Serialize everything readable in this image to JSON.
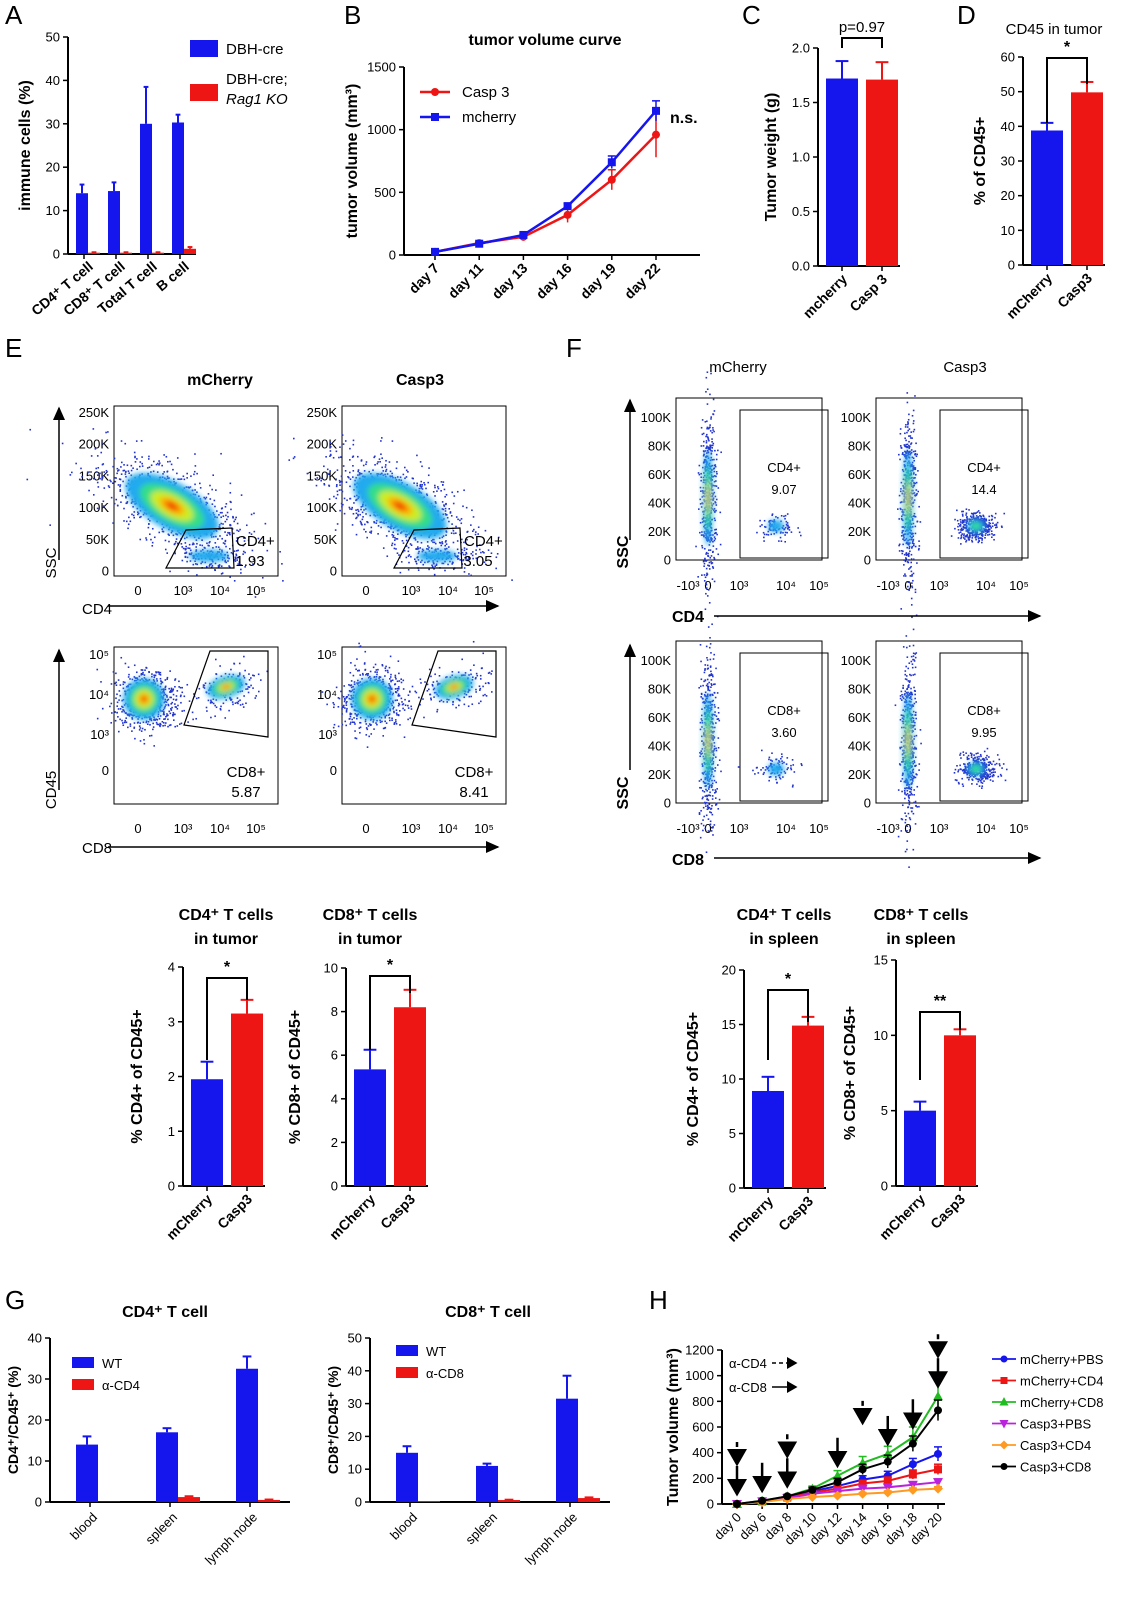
{
  "panel_labels": [
    "A",
    "B",
    "C",
    "D",
    "E",
    "F",
    "G",
    "H"
  ],
  "colors": {
    "blue": "#1515ee",
    "red": "#ee1515",
    "green": "#22bb22",
    "magenta": "#bb22dd",
    "orange": "#ff9922",
    "black": "#000000"
  },
  "chart_data": [
    {
      "id": "A",
      "type": "bar",
      "title": "",
      "ylabel": "immune cells (%)",
      "ylim": [
        0,
        50
      ],
      "yticks": [
        0,
        10,
        20,
        30,
        40,
        50
      ],
      "categories": [
        "CD4⁺ T cell",
        "CD8⁺ T cell",
        "Total T cell",
        "B cell"
      ],
      "series": [
        {
          "name": "DBH-cre",
          "values": [
            14,
            14.5,
            30,
            30.3
          ],
          "errors": [
            2,
            2,
            8.5,
            1.8
          ]
        },
        {
          "name": "DBH-cre; Rag1 KO",
          "values": [
            0.3,
            0.3,
            0.3,
            1.2
          ],
          "errors": [
            0.1,
            0.1,
            0.1,
            0.4
          ]
        }
      ],
      "legend": [
        "DBH-cre",
        "DBH-cre;",
        "Rag1 KO"
      ]
    },
    {
      "id": "B",
      "type": "line",
      "title": "tumor volume curve",
      "ylabel": "tumor volume (mm³)",
      "ylim": [
        0,
        1500
      ],
      "yticks": [
        0,
        500,
        1000,
        1500
      ],
      "x": [
        "day 7",
        "day 11",
        "day 13",
        "day 16",
        "day 19",
        "day 22"
      ],
      "series": [
        {
          "name": "Casp 3",
          "values": [
            25,
            95,
            145,
            320,
            600,
            960
          ],
          "errors": [
            5,
            10,
            15,
            60,
            80,
            180
          ]
        },
        {
          "name": "mcherry",
          "values": [
            25,
            90,
            160,
            390,
            740,
            1150
          ],
          "errors": [
            5,
            10,
            12,
            20,
            50,
            80
          ]
        }
      ],
      "annotation": "n.s."
    },
    {
      "id": "C",
      "type": "bar",
      "title": "",
      "ylabel": "Tumor weight (g)",
      "ylim": [
        0,
        2.0
      ],
      "yticks": [
        "0.0",
        "0.5",
        "1.0",
        "1.5",
        "2.0"
      ],
      "categories": [
        "mcherry",
        "Casp 3"
      ],
      "values": [
        1.72,
        1.71
      ],
      "errors": [
        0.16,
        0.16
      ],
      "annotation": "p=0.97"
    },
    {
      "id": "D",
      "type": "bar",
      "title": "CD45 in tumor",
      "ylabel": "% of CD45+",
      "ylim": [
        0,
        60
      ],
      "yticks": [
        0,
        10,
        20,
        30,
        40,
        50,
        60
      ],
      "categories": [
        "mCherry",
        "Casp3"
      ],
      "values": [
        38.8,
        49.8
      ],
      "errors": [
        2.2,
        3.0
      ],
      "annotation": "*"
    },
    {
      "id": "E1",
      "type": "bar",
      "title": [
        "CD4⁺ T cells",
        "in tumor"
      ],
      "ylabel": "% CD4+ of CD45+",
      "ylim": [
        0,
        4
      ],
      "yticks": [
        0,
        1,
        2,
        3,
        4
      ],
      "categories": [
        "mCherry",
        "Casp3"
      ],
      "values": [
        1.95,
        3.15
      ],
      "errors": [
        0.32,
        0.25
      ],
      "annotation": "*"
    },
    {
      "id": "E2",
      "type": "bar",
      "title": [
        "CD8⁺ T cells",
        "in tumor"
      ],
      "ylabel": "% CD8+ of CD45+",
      "ylim": [
        0,
        10
      ],
      "yticks": [
        0,
        2,
        4,
        6,
        8,
        10
      ],
      "categories": [
        "mCherry",
        "Casp3"
      ],
      "values": [
        5.35,
        8.2
      ],
      "errors": [
        0.9,
        0.8
      ],
      "annotation": "*"
    },
    {
      "id": "F1",
      "type": "bar",
      "title": [
        "CD4⁺ T cells",
        "in spleen"
      ],
      "ylabel": "% CD4+ of CD45+",
      "ylim": [
        0,
        20
      ],
      "yticks": [
        0,
        5,
        10,
        15,
        20
      ],
      "categories": [
        "mCherry",
        "Casp3"
      ],
      "values": [
        8.9,
        14.9
      ],
      "errors": [
        1.3,
        0.8
      ],
      "annotation": "*"
    },
    {
      "id": "F2",
      "type": "bar",
      "title": [
        "CD8⁺ T cells",
        "in spleen"
      ],
      "ylabel": "% CD8+ of CD45+",
      "ylim": [
        0,
        15
      ],
      "yticks": [
        0,
        5,
        10,
        15
      ],
      "categories": [
        "mCherry",
        "Casp3"
      ],
      "values": [
        5.0,
        10.0
      ],
      "errors": [
        0.6,
        0.4
      ],
      "annotation": "**"
    },
    {
      "id": "G1",
      "type": "bar",
      "title": "CD4⁺ T cell",
      "ylabel": "CD4⁺/CD45⁺ (%)",
      "ylim": [
        0,
        40
      ],
      "yticks": [
        0,
        10,
        20,
        30,
        40
      ],
      "categories": [
        "blood",
        "spleen",
        "lymph node"
      ],
      "series": [
        {
          "name": "WT",
          "values": [
            14,
            17,
            32.5
          ],
          "errors": [
            2,
            1,
            3
          ]
        },
        {
          "name": "α-CD4",
          "values": [
            0.1,
            1.2,
            0.5
          ],
          "errors": [
            0,
            0.2,
            0.1
          ]
        }
      ]
    },
    {
      "id": "G2",
      "type": "bar",
      "title": "CD8⁺ T cell",
      "ylabel": "CD8⁺/CD45⁺ (%)",
      "ylim": [
        0,
        50
      ],
      "yticks": [
        0,
        10,
        20,
        30,
        40,
        50
      ],
      "categories": [
        "blood",
        "spleen",
        "lymph node"
      ],
      "series": [
        {
          "name": "WT",
          "values": [
            15,
            11,
            31.5
          ],
          "errors": [
            2,
            0.7,
            7
          ]
        },
        {
          "name": "α-CD8",
          "values": [
            0.3,
            0.6,
            1.2
          ],
          "errors": [
            0,
            0.1,
            0.2
          ]
        }
      ]
    },
    {
      "id": "H",
      "type": "line",
      "title": "",
      "ylabel": "Tumor volume (mm³)",
      "ylim": [
        0,
        1200
      ],
      "yticks": [
        0,
        200,
        400,
        600,
        800,
        1000,
        1200
      ],
      "x": [
        "day 0",
        "day 6",
        "day 8",
        "day 10",
        "day 12",
        "day 14",
        "day 16",
        "day 18",
        "day 20"
      ],
      "series": [
        {
          "name": "mCherry+PBS",
          "values": [
            0,
            20,
            55,
            100,
            140,
            190,
            220,
            310,
            390
          ],
          "errors": [
            0,
            5,
            10,
            15,
            25,
            30,
            35,
            45,
            55
          ]
        },
        {
          "name": "mCherry+CD4",
          "values": [
            0,
            20,
            50,
            90,
            120,
            160,
            180,
            230,
            270
          ],
          "errors": [
            0,
            5,
            8,
            12,
            20,
            25,
            30,
            35,
            40
          ]
        },
        {
          "name": "mCherry+CD8",
          "values": [
            0,
            25,
            60,
            120,
            220,
            320,
            390,
            520,
            840
          ],
          "errors": [
            0,
            5,
            10,
            20,
            40,
            50,
            60,
            80,
            160
          ]
        },
        {
          "name": "Casp3+PBS",
          "values": [
            0,
            20,
            45,
            80,
            100,
            120,
            130,
            150,
            170
          ],
          "errors": [
            0,
            5,
            8,
            10,
            12,
            15,
            20,
            20,
            25
          ]
        },
        {
          "name": "Casp3+CD4",
          "values": [
            0,
            15,
            40,
            55,
            65,
            80,
            90,
            110,
            120
          ],
          "errors": [
            0,
            5,
            5,
            8,
            10,
            10,
            12,
            15,
            15
          ]
        },
        {
          "name": "Casp3+CD8",
          "values": [
            0,
            25,
            60,
            110,
            170,
            270,
            330,
            470,
            730
          ],
          "errors": [
            0,
            5,
            10,
            20,
            30,
            40,
            50,
            60,
            80
          ]
        }
      ],
      "annotations": [
        "α-CD4",
        "α-CD8"
      ]
    }
  ],
  "flow": {
    "E": {
      "conditions": [
        "mCherry",
        "Casp3"
      ],
      "cd4": {
        "ylabel": "SSC",
        "xlabel": "CD4",
        "yticks": [
          "250K",
          "200K",
          "150K",
          "100K",
          "50K",
          "0"
        ],
        "xticks": [
          "0",
          "10³",
          "10⁴",
          "10⁵"
        ],
        "gate": "CD4+",
        "values": [
          "1.93",
          "3.05"
        ]
      },
      "cd8": {
        "ylabel": "CD45",
        "xlabel": "CD8",
        "yticks": [
          "10⁵",
          "10⁴",
          "10³",
          "0"
        ],
        "xticks": [
          "0",
          "10³",
          "10⁴",
          "10⁵"
        ],
        "gate": "CD8+",
        "values": [
          "5.87",
          "8.41"
        ]
      }
    },
    "F": {
      "conditions": [
        "mCherry",
        "Casp3"
      ],
      "cd4": {
        "ylabel": "SSC",
        "xlabel": "CD4",
        "yticks": [
          "100K",
          "80K",
          "60K",
          "40K",
          "20K",
          "0"
        ],
        "xticks": [
          "-10³",
          "0",
          "10³",
          "10⁴",
          "10⁵"
        ],
        "gate": "CD4+",
        "values": [
          "9.07",
          "14.4"
        ]
      },
      "cd8": {
        "ylabel": "SSC",
        "xlabel": "CD8",
        "yticks": [
          "100K",
          "80K",
          "60K",
          "40K",
          "20K",
          "0"
        ],
        "xticks": [
          "-10³",
          "0",
          "10³",
          "10⁴",
          "10⁵"
        ],
        "gate": "CD8+",
        "values": [
          "3.60",
          "9.95"
        ]
      }
    }
  }
}
